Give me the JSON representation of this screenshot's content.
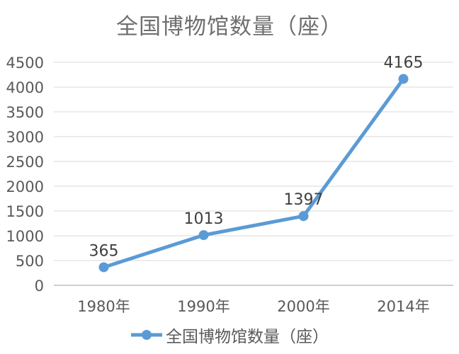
{
  "chart_data": {
    "type": "line",
    "title": "全国博物馆数量（座）",
    "categories": [
      "1980年",
      "1990年",
      "2000年",
      "2014年"
    ],
    "series": [
      {
        "name": "全国博物馆数量（座）",
        "values": [
          365,
          1013,
          1397,
          4165
        ]
      }
    ],
    "data_labels": [
      "365",
      "1013",
      "1397",
      "4165"
    ],
    "yticks": [
      0,
      500,
      1000,
      1500,
      2000,
      2500,
      3000,
      3500,
      4000,
      4500
    ],
    "ylim": [
      0,
      4500
    ],
    "xlabel": "",
    "ylabel": "",
    "grid": true,
    "legend_position": "bottom",
    "legend_label": "全国博物馆数量（座）",
    "colors": {
      "line": "#5B9BD5",
      "marker": "#5B9BD5",
      "gridline": "#D9D9D9",
      "axis_line": "#BFBFBF",
      "tick_label": "#595959",
      "data_label": "#3F3F3F",
      "title": "#6F6F6F"
    }
  }
}
